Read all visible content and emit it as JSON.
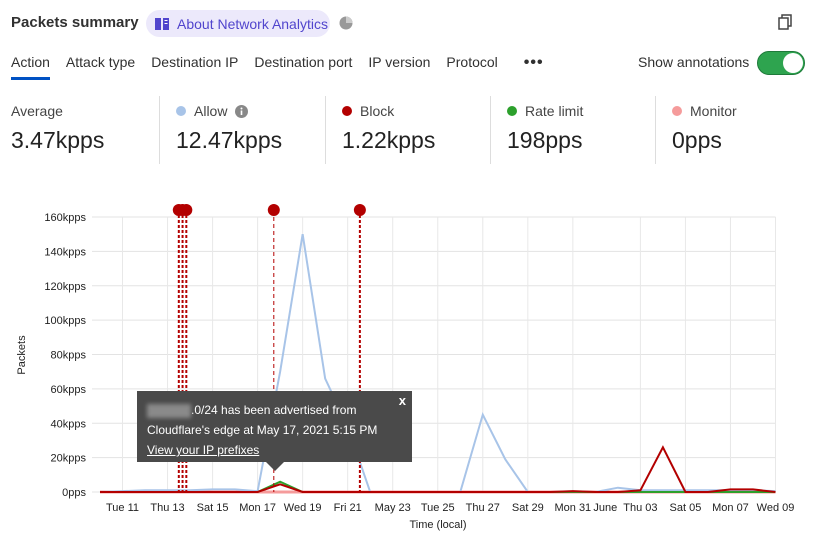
{
  "header": {
    "title": "Packets summary",
    "about_label": "About Network Analytics",
    "icons": [
      "book-icon",
      "pie-chart-icon",
      "copy-icon"
    ]
  },
  "tabs": [
    {
      "label": "Action",
      "active": true
    },
    {
      "label": "Attack type"
    },
    {
      "label": "Destination IP"
    },
    {
      "label": "Destination port"
    },
    {
      "label": "IP version"
    },
    {
      "label": "Protocol"
    }
  ],
  "more_label": "•••",
  "annotations_toggle": {
    "label": "Show annotations",
    "on": true,
    "color": "#2ea44f"
  },
  "stats": [
    {
      "label": "Average",
      "value": "3.47kpps"
    },
    {
      "label": "Allow",
      "value": "12.47kpps",
      "color": "#a8c4e8",
      "info": true
    },
    {
      "label": "Block",
      "value": "1.22kpps",
      "color": "#b30000"
    },
    {
      "label": "Rate limit",
      "value": "198pps",
      "color": "#2ca02c"
    },
    {
      "label": "Monitor",
      "value": "0pps",
      "color": "#f59b9b"
    }
  ],
  "tooltip": {
    "text_line1": ".0/24 has been advertised from",
    "text_line2": "Cloudflare's edge at May 17, 2021 5:15 PM",
    "link": "View your IP prefixes",
    "close": "x"
  },
  "chart_data": {
    "type": "line",
    "xlabel": "Time (local)",
    "ylabel": "Packets",
    "x_tick_labels": [
      "Tue 11",
      "Thu 13",
      "Sat 15",
      "Mon 17",
      "Wed 19",
      "Fri 21",
      "May 23",
      "Tue 25",
      "Thu 27",
      "Sat 29",
      "Mon 31",
      "June",
      "Thu 03",
      "Sat 05",
      "Mon 07",
      "Wed 09"
    ],
    "x_tick_dates": [
      "2021-05-11",
      "2021-05-13",
      "2021-05-15",
      "2021-05-17",
      "2021-05-19",
      "2021-05-21",
      "2021-05-23",
      "2021-05-25",
      "2021-05-27",
      "2021-05-29",
      "2021-05-31",
      "2021-06-01",
      "2021-06-03",
      "2021-06-05",
      "2021-06-07",
      "2021-06-09"
    ],
    "y_tick_labels": [
      "0pps",
      "20kpps",
      "40kpps",
      "60kpps",
      "80kpps",
      "100kpps",
      "120kpps",
      "140kpps",
      "160kpps"
    ],
    "ylim": [
      0,
      160000
    ],
    "xlim": [
      "2021-05-10",
      "2021-06-09"
    ],
    "grid": true,
    "x": [
      "2021-05-10",
      "2021-05-11",
      "2021-05-12",
      "2021-05-13",
      "2021-05-14",
      "2021-05-15",
      "2021-05-16",
      "2021-05-17",
      "2021-05-18",
      "2021-05-19",
      "2021-05-20",
      "2021-05-21",
      "2021-05-22",
      "2021-05-23",
      "2021-05-24",
      "2021-05-25",
      "2021-05-26",
      "2021-05-27",
      "2021-05-28",
      "2021-05-29",
      "2021-05-30",
      "2021-05-31",
      "2021-06-01",
      "2021-06-02",
      "2021-06-03",
      "2021-06-04",
      "2021-06-05",
      "2021-06-06",
      "2021-06-07",
      "2021-06-08",
      "2021-06-09"
    ],
    "series": [
      {
        "name": "Allow",
        "color": "#a8c4e8",
        "values": [
          0,
          500,
          1000,
          1000,
          1000,
          1500,
          1500,
          500,
          70000,
          150000,
          66000,
          38000,
          0,
          0,
          0,
          0,
          0,
          45000,
          19000,
          0,
          0,
          0,
          0,
          2500,
          1000,
          1000,
          1000,
          1000,
          1000,
          1000,
          500
        ]
      },
      {
        "name": "Rate limit",
        "color": "#2ca02c",
        "values": [
          0,
          0,
          0,
          0,
          0,
          0,
          0,
          0,
          6000,
          0,
          0,
          0,
          0,
          0,
          0,
          0,
          0,
          0,
          0,
          0,
          0,
          0,
          0,
          0,
          0,
          0,
          0,
          0,
          0,
          0,
          0
        ]
      },
      {
        "name": "Block",
        "color": "#b30000",
        "values": [
          0,
          0,
          0,
          0,
          0,
          0,
          0,
          0,
          4500,
          0,
          0,
          0,
          0,
          0,
          0,
          0,
          0,
          0,
          0,
          0,
          0,
          500,
          0,
          0,
          1000,
          26000,
          0,
          0,
          1500,
          1500,
          0
        ]
      },
      {
        "name": "Monitor",
        "color": "#f59b9b",
        "values": [
          0,
          0,
          0,
          0,
          0,
          0,
          0,
          0,
          0,
          0,
          0,
          0,
          0,
          0,
          0,
          0,
          0,
          0,
          0,
          0,
          0,
          0,
          0,
          0,
          0,
          0,
          0,
          0,
          0,
          0,
          0
        ]
      }
    ],
    "annotations": [
      "2021-05-13T12:00",
      "2021-05-13T16:00",
      "2021-05-13T20:00",
      "2021-05-17T17:15",
      "2021-05-21T13:00"
    ],
    "annotation_color": "#b30000"
  }
}
